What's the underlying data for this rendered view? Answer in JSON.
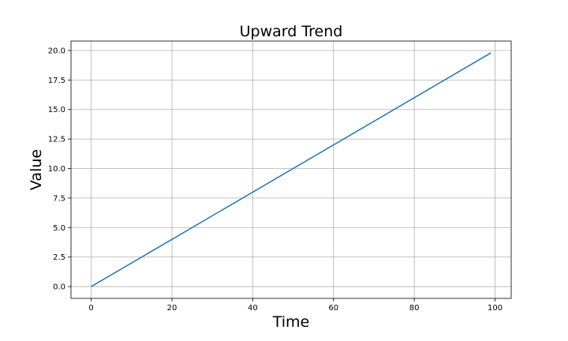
{
  "chart_data": {
    "type": "line",
    "title": "Upward Trend",
    "xlabel": "Time",
    "ylabel": "Value",
    "xlim": [
      -5,
      104
    ],
    "ylim": [
      -1,
      20.8
    ],
    "x_ticks": [
      0,
      20,
      40,
      60,
      80,
      100
    ],
    "x_tick_labels": [
      "0",
      "20",
      "40",
      "60",
      "80",
      "100"
    ],
    "y_ticks": [
      0,
      2.5,
      5,
      7.5,
      10,
      12.5,
      15,
      17.5,
      20
    ],
    "y_tick_labels": [
      "0.0",
      "2.5",
      "5.0",
      "7.5",
      "10.0",
      "12.5",
      "15.0",
      "17.5",
      "20.0"
    ],
    "grid": true,
    "series": [
      {
        "color": "#1f77b4",
        "x": [
          0,
          99
        ],
        "y": [
          0,
          19.8
        ]
      }
    ]
  }
}
